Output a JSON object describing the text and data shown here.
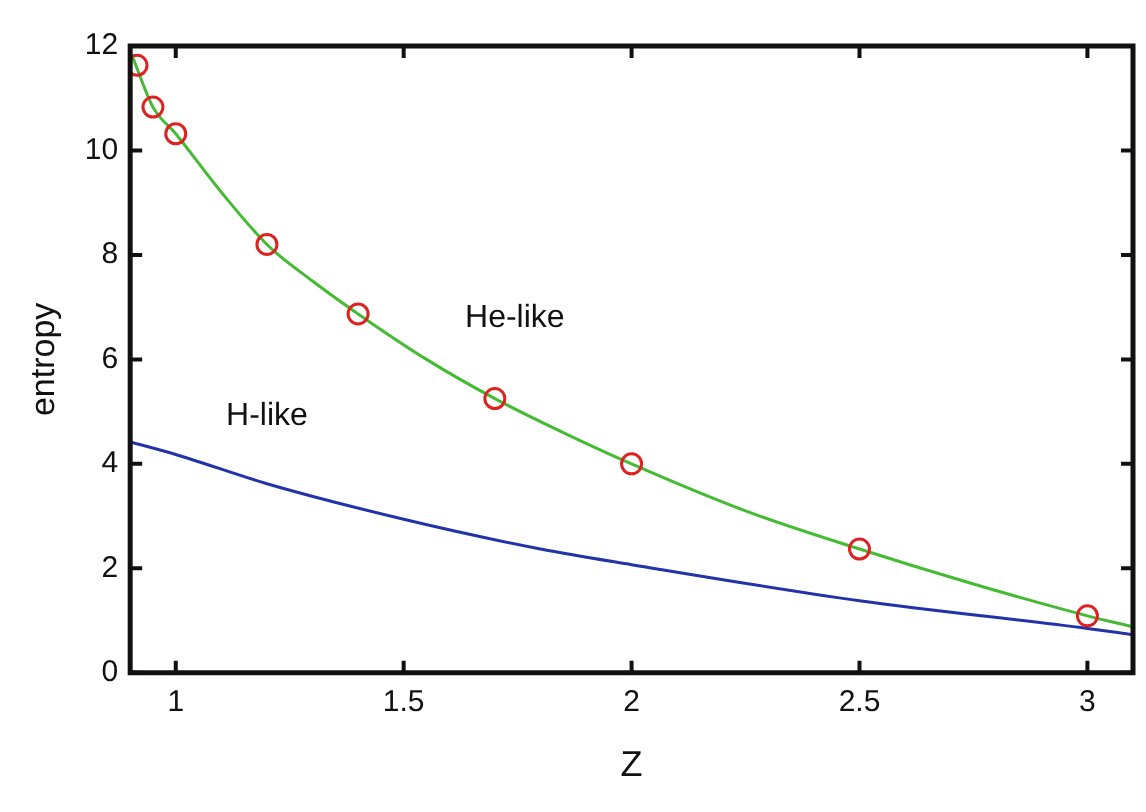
{
  "chart_data": {
    "type": "line",
    "xlabel": "Z",
    "ylabel": "entropy",
    "xlim": [
      0.9,
      3.1
    ],
    "xticks": [
      1,
      1.5,
      2,
      2.5,
      3
    ],
    "ylim": [
      0,
      12
    ],
    "yticks": [
      0,
      2,
      4,
      6,
      8,
      10,
      12
    ],
    "legend": false,
    "series": [
      {
        "name": "He-like",
        "color": "#44bb33",
        "marker": "none",
        "x": [
          0.905,
          0.95,
          1.0,
          1.1,
          1.2,
          1.3,
          1.4,
          1.55,
          1.7,
          1.85,
          2.0,
          2.25,
          2.5,
          2.75,
          3.0,
          3.1
        ],
        "values": [
          11.8,
          10.83,
          10.32,
          9.2,
          8.2,
          7.5,
          6.87,
          6.0,
          5.25,
          4.6,
          4.0,
          3.1,
          2.37,
          1.7,
          1.09,
          0.88
        ]
      },
      {
        "name": "H-like",
        "color": "#2233aa",
        "marker": "none",
        "x": [
          0.9,
          1.0,
          1.2,
          1.5,
          1.8,
          2.0,
          2.5,
          3.0,
          3.1
        ],
        "values": [
          4.42,
          4.18,
          3.62,
          2.94,
          2.37,
          2.07,
          1.38,
          0.85,
          0.73
        ]
      },
      {
        "type": "scatter",
        "color": "#dd2222",
        "marker": "circle",
        "x": [
          0.915,
          0.95,
          1.0,
          1.2,
          1.4,
          1.7,
          2.0,
          2.5,
          3.0
        ],
        "values": [
          11.63,
          10.83,
          10.32,
          8.2,
          6.87,
          5.25,
          4.0,
          2.37,
          1.09
        ]
      }
    ]
  }
}
